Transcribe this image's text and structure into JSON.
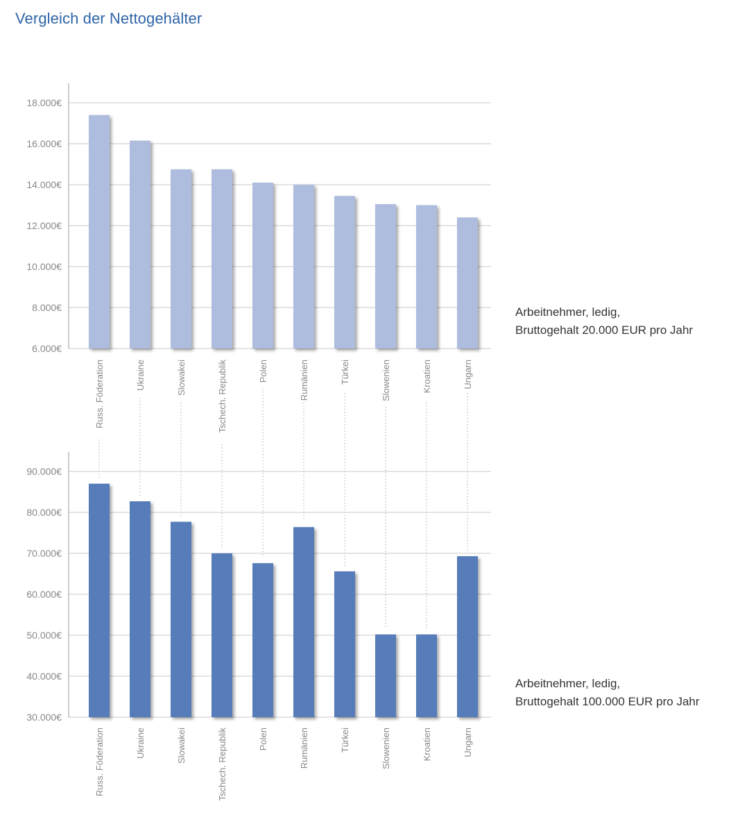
{
  "title": "Vergleich der Nettogehälter",
  "colors": {
    "title": "#2e64a8",
    "bar_light": "#aebcdd",
    "bar_dark": "#577cb9",
    "grid": "#c8c8c8",
    "tick_text": "#888888"
  },
  "chart_data": [
    {
      "type": "bar",
      "title": "",
      "annotation": [
        "Arbeitnehmer, ledig,",
        "Bruttogehalt 20.000 EUR pro Jahr"
      ],
      "categories": [
        "Russ. Föderation",
        "Ukraine",
        "Slowakei",
        "Tschech. Republik",
        "Polen",
        "Rumänien",
        "Türkei",
        "Slowenien",
        "Kroatien",
        "Ungarn"
      ],
      "values": [
        17400,
        16150,
        14750,
        14750,
        14100,
        14000,
        13450,
        13050,
        13000,
        12400
      ],
      "ylim": [
        6000,
        18000
      ],
      "yticks": [
        6000,
        8000,
        10000,
        12000,
        14000,
        16000,
        18000
      ],
      "ytick_labels": [
        "6.000€",
        "8.000€",
        "10.000€",
        "12.000€",
        "14.000€",
        "16.000€",
        "18.000€"
      ],
      "grid": true,
      "xlabel": "",
      "ylabel": ""
    },
    {
      "type": "bar",
      "title": "",
      "annotation": [
        "Arbeitnehmer, ledig,",
        "Bruttogehalt 100.000 EUR pro Jahr"
      ],
      "categories": [
        "Russ. Föderation",
        "Ukraine",
        "Slowakei",
        "Tschech. Republik",
        "Polen",
        "Rumänien",
        "Türkei",
        "Slowenien",
        "Kroatien",
        "Ungarn"
      ],
      "values": [
        87000,
        82700,
        77700,
        70000,
        67600,
        76400,
        65600,
        50200,
        50200,
        69300
      ],
      "ylim": [
        30000,
        90000
      ],
      "yticks": [
        30000,
        40000,
        50000,
        60000,
        70000,
        80000,
        90000
      ],
      "ytick_labels": [
        "30.000€",
        "40.000€",
        "50.000€",
        "60.000€",
        "70.000€",
        "80.000€",
        "90.000€"
      ],
      "grid": true,
      "xlabel": "",
      "ylabel": ""
    }
  ]
}
